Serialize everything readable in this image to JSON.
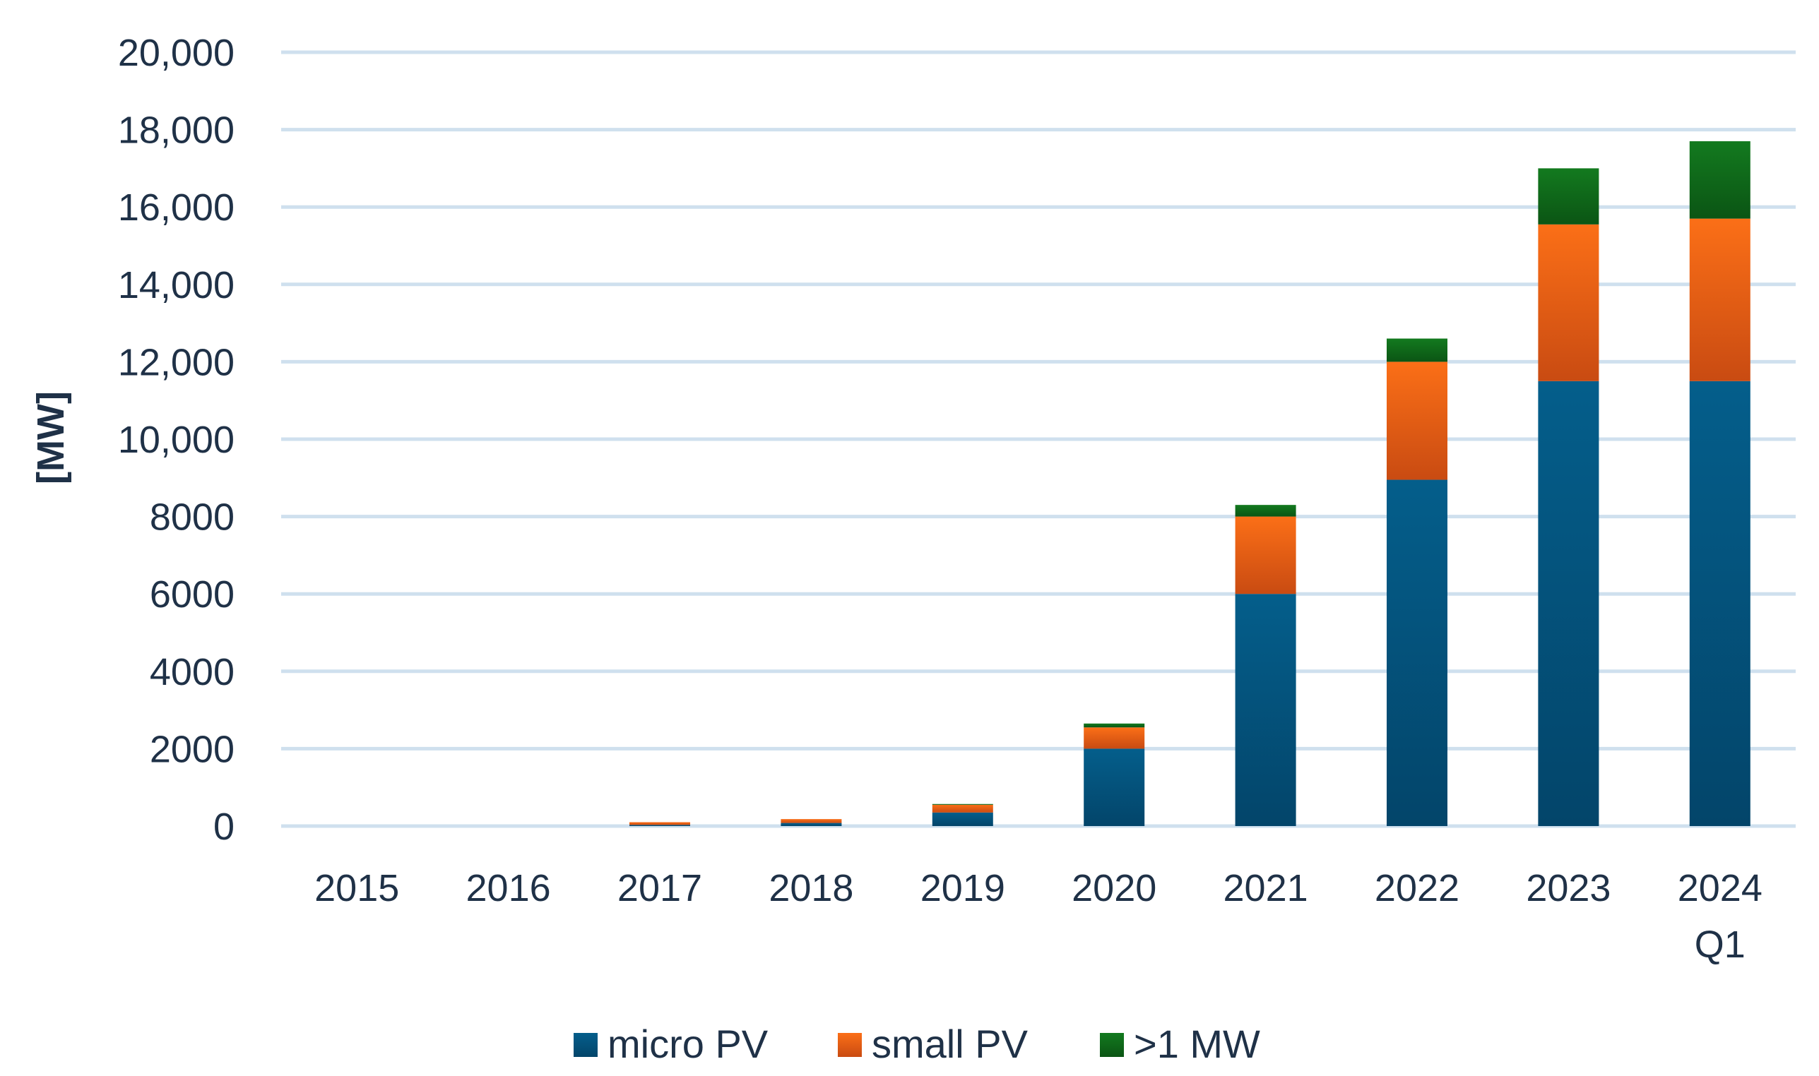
{
  "chart_data": {
    "type": "bar",
    "stacked": true,
    "title": "",
    "xlabel": "",
    "ylabel": "[MW]",
    "ylim": [
      0,
      20000
    ],
    "grid": true,
    "legend_position": "bottom",
    "y_ticks": [
      {
        "value": 0,
        "label": "0"
      },
      {
        "value": 2000,
        "label": "2000"
      },
      {
        "value": 4000,
        "label": "4000"
      },
      {
        "value": 6000,
        "label": "6000"
      },
      {
        "value": 8000,
        "label": "8000"
      },
      {
        "value": 10000,
        "label": "10,000"
      },
      {
        "value": 12000,
        "label": "12,000"
      },
      {
        "value": 14000,
        "label": "14,000"
      },
      {
        "value": 16000,
        "label": "16,000"
      },
      {
        "value": 18000,
        "label": "18,000"
      },
      {
        "value": 20000,
        "label": "20,000"
      }
    ],
    "categories": [
      [
        "2015"
      ],
      [
        "2016"
      ],
      [
        "2017"
      ],
      [
        "2018"
      ],
      [
        "2019"
      ],
      [
        "2020"
      ],
      [
        "2021"
      ],
      [
        "2022"
      ],
      [
        "2023"
      ],
      [
        "2024",
        "Q1"
      ]
    ],
    "series": [
      {
        "name": "micro PV",
        "color": "#045e8b",
        "color_dark": "#03456a",
        "values": [
          0,
          0,
          30,
          80,
          350,
          2000,
          6000,
          8950,
          11500,
          11500
        ]
      },
      {
        "name": "small PV",
        "color": "#fb6f17",
        "color_dark": "#c94b12",
        "values": [
          0,
          0,
          70,
          100,
          200,
          550,
          2000,
          3050,
          4050,
          4200
        ]
      },
      {
        "name": ">1 MW",
        "color": "#137a1f",
        "color_dark": "#0b5514",
        "values": [
          0,
          0,
          0,
          0,
          20,
          100,
          300,
          600,
          1450,
          2000
        ]
      }
    ]
  }
}
